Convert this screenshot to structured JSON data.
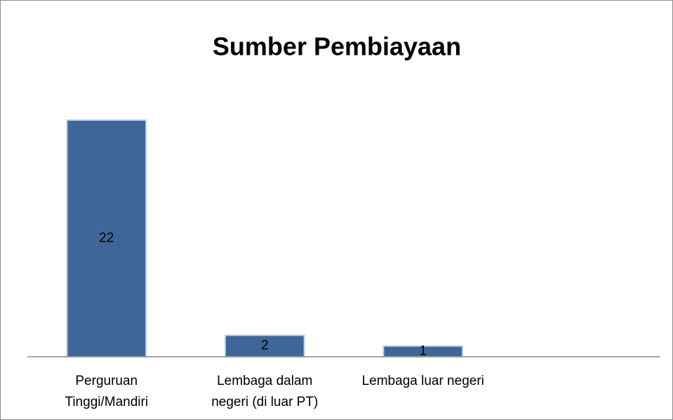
{
  "chart_data": {
    "type": "bar",
    "title": "Sumber Pembiayaan",
    "categories": [
      "Perguruan\nTinggi/Mandiri",
      "Lembaga dalam\nnegeri (di luar PT)",
      "Lembaga luar negeri",
      null
    ],
    "values": [
      22,
      2,
      1,
      null
    ],
    "color": "#3f6698"
  }
}
